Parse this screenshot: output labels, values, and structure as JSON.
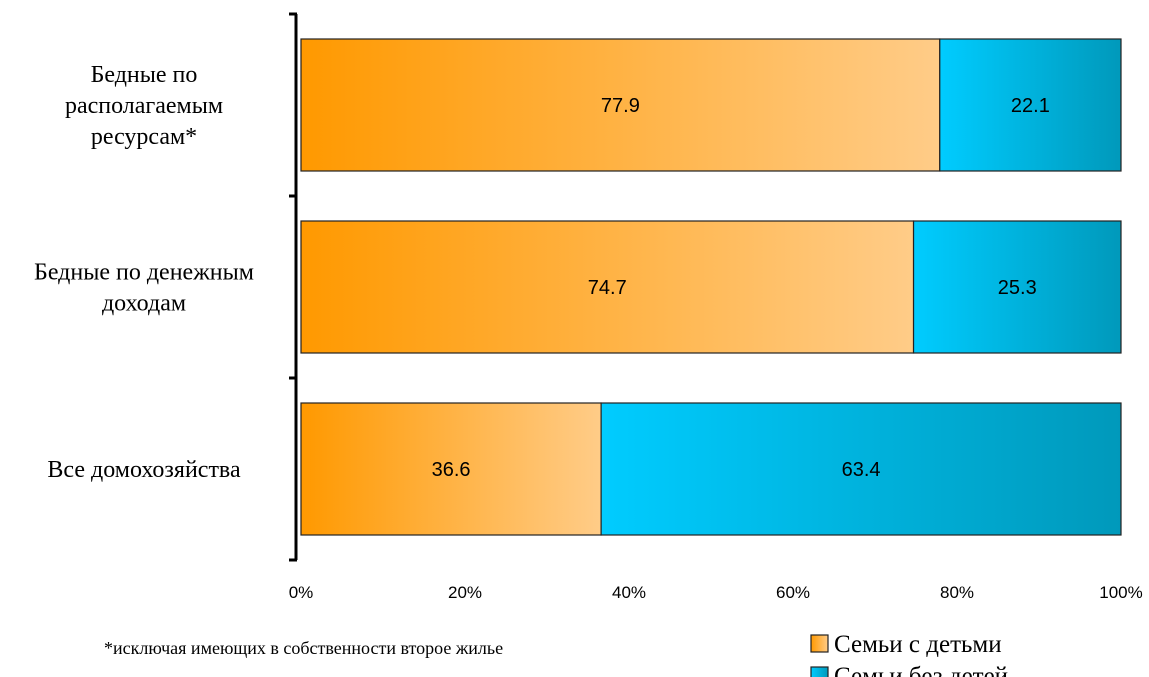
{
  "chart_data": {
    "type": "bar",
    "orientation": "horizontal",
    "stacked": "percent",
    "categories": [
      [
        "Бедные по",
        "располагаемым",
        "ресурсам*"
      ],
      [
        "Бедные по денежным",
        "доходам"
      ],
      [
        "Все домохозяйства"
      ]
    ],
    "series": [
      {
        "name": "Семьи с детьми",
        "values": [
          77.9,
          74.7,
          36.6
        ],
        "color_start": "#ff9900",
        "color_end": "#ffcc88"
      },
      {
        "name": "Семьи без детей",
        "values": [
          22.1,
          25.3,
          63.4
        ],
        "color_start": "#00ccff",
        "color_end": "#0099bb"
      }
    ],
    "x_ticks": [
      "0%",
      "20%",
      "40%",
      "60%",
      "80%",
      "100%"
    ],
    "xlim": [
      0,
      100
    ],
    "legend_position": "bottom-right",
    "grid": false,
    "footnote": "*исключая имеющих в собственности второе жилье"
  }
}
